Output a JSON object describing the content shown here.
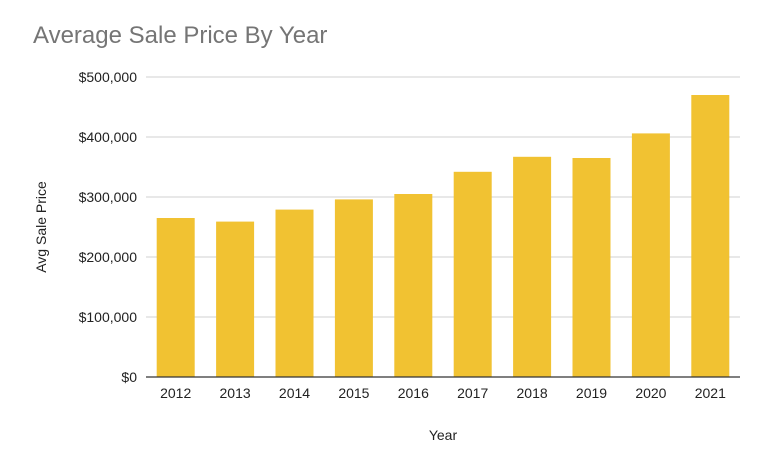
{
  "chart_data": {
    "type": "bar",
    "title": "Average Sale Price By Year",
    "xlabel": "Year",
    "ylabel": "Avg Sale Price",
    "categories": [
      "2012",
      "2013",
      "2014",
      "2015",
      "2016",
      "2017",
      "2018",
      "2019",
      "2020",
      "2021"
    ],
    "values": [
      265000,
      259000,
      279000,
      296000,
      305000,
      342000,
      367000,
      365000,
      406000,
      470000
    ],
    "ylim": [
      0,
      500000
    ],
    "yticks": [
      0,
      100000,
      200000,
      300000,
      400000,
      500000
    ],
    "ytick_labels": [
      "$0",
      "$100,000",
      "$200,000",
      "$300,000",
      "$400,000",
      "$500,000"
    ],
    "grid": true,
    "legend": "none",
    "bar_color": "#f1c232"
  }
}
